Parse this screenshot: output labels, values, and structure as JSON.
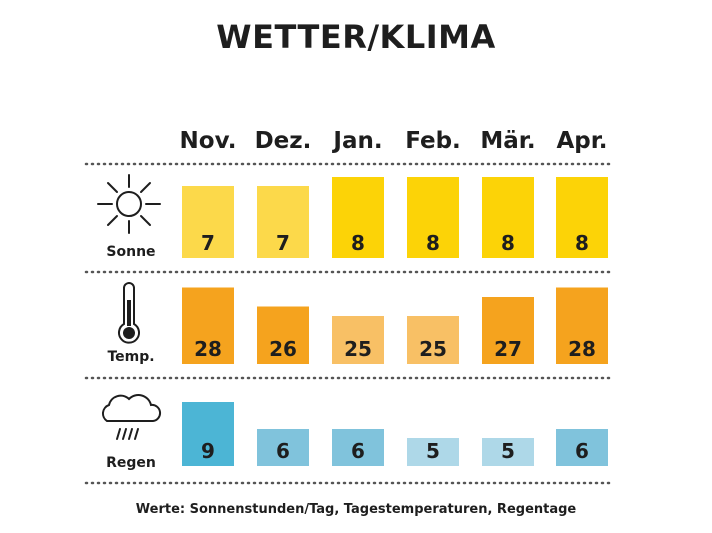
{
  "title": "WETTER/KLIMA",
  "footnote": "Werte: Sonnenstunden/Tag, Tagestemperaturen, Regentage",
  "colors": {
    "sun_low": "#fcd94a",
    "sun_high": "#fcd307",
    "temp_low": "#f8c065",
    "temp_high": "#f5a31e",
    "rain_high": "#4cb5d5",
    "rain_mid": "#80c3dc",
    "rain_low": "#aed8e8",
    "text": "#1e1e1e",
    "divider": "#555555"
  },
  "chart_data": {
    "type": "table",
    "categories": [
      "Nov.",
      "Dez.",
      "Jan.",
      "Feb.",
      "Mär.",
      "Apr."
    ],
    "series": [
      {
        "name": "Sonne",
        "icon": "sun-icon",
        "values": [
          7,
          7,
          8,
          8,
          8,
          8
        ]
      },
      {
        "name": "Temp.",
        "icon": "thermometer-icon",
        "values": [
          28,
          26,
          25,
          25,
          27,
          28
        ]
      },
      {
        "name": "Regen",
        "icon": "rain-cloud-icon",
        "values": [
          9,
          6,
          6,
          5,
          5,
          6
        ]
      }
    ]
  }
}
